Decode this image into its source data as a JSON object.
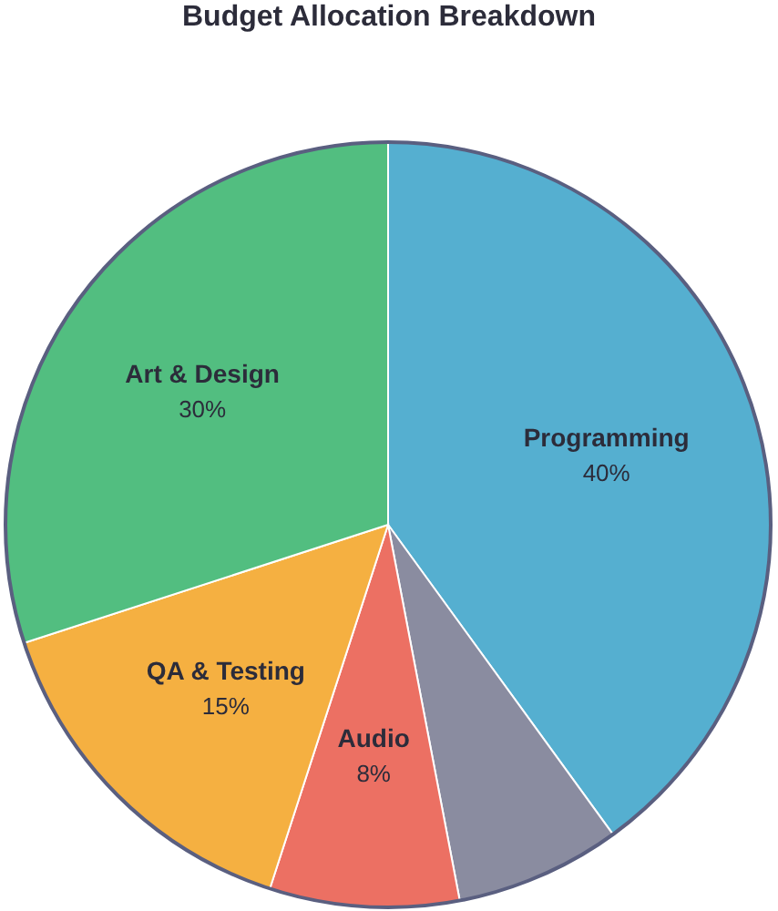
{
  "chart_data": {
    "type": "pie",
    "title": "Budget Allocation Breakdown",
    "categories": [
      "Programming",
      null,
      "Audio",
      "QA & Testing",
      "Art & Design"
    ],
    "values": [
      40,
      7,
      8,
      15,
      30
    ],
    "colors": [
      "#55afd0",
      "#8a8ca0",
      "#ec7063",
      "#f5b041",
      "#52be80"
    ],
    "value_labels": [
      "40%",
      null,
      "8%",
      "15%",
      "30%"
    ]
  }
}
